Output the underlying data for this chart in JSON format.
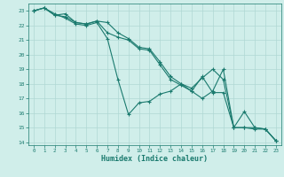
{
  "xlabel": "Humidex (Indice chaleur)",
  "xlim": [
    -0.5,
    23.5
  ],
  "ylim": [
    13.8,
    23.5
  ],
  "yticks": [
    14,
    15,
    16,
    17,
    18,
    19,
    20,
    21,
    22,
    23
  ],
  "xticks": [
    0,
    1,
    2,
    3,
    4,
    5,
    6,
    7,
    8,
    9,
    10,
    11,
    12,
    13,
    14,
    15,
    16,
    17,
    18,
    19,
    20,
    21,
    22,
    23
  ],
  "bg_color": "#d0eeea",
  "grid_color": "#b0d8d4",
  "line_color": "#1a7a6e",
  "lines": [
    {
      "x": [
        0,
        1,
        2,
        3,
        4,
        5,
        6,
        7,
        8,
        9,
        10,
        11,
        12,
        13,
        14,
        15,
        16,
        17,
        18,
        19,
        20,
        21,
        22,
        23
      ],
      "y": [
        23.0,
        23.2,
        22.8,
        22.5,
        22.1,
        22.0,
        22.2,
        21.1,
        18.3,
        15.9,
        16.7,
        16.8,
        17.3,
        17.5,
        18.0,
        17.5,
        18.5,
        17.4,
        17.4,
        15.0,
        16.1,
        15.0,
        14.9,
        14.1
      ]
    },
    {
      "x": [
        0,
        1,
        2,
        3,
        4,
        5,
        6,
        7,
        8,
        9,
        10,
        11,
        12,
        13,
        14,
        15,
        16,
        17,
        18,
        19,
        20,
        21,
        22,
        23
      ],
      "y": [
        23.0,
        23.2,
        22.7,
        22.6,
        22.2,
        22.1,
        22.3,
        22.2,
        21.5,
        21.1,
        20.5,
        20.4,
        19.5,
        18.5,
        18.0,
        17.7,
        18.4,
        19.0,
        18.3,
        15.0,
        15.0,
        15.0,
        14.9,
        14.1
      ]
    },
    {
      "x": [
        0,
        1,
        2,
        3,
        4,
        5,
        6,
        7,
        8,
        9,
        10,
        11,
        12,
        13,
        14,
        15,
        16,
        17,
        18,
        19,
        20,
        21,
        22,
        23
      ],
      "y": [
        23.0,
        23.2,
        22.7,
        22.8,
        22.2,
        22.1,
        22.3,
        21.5,
        21.2,
        21.0,
        20.4,
        20.3,
        19.3,
        18.3,
        17.9,
        17.5,
        17.0,
        17.5,
        19.0,
        15.0,
        15.0,
        14.9,
        14.9,
        14.1
      ]
    }
  ]
}
